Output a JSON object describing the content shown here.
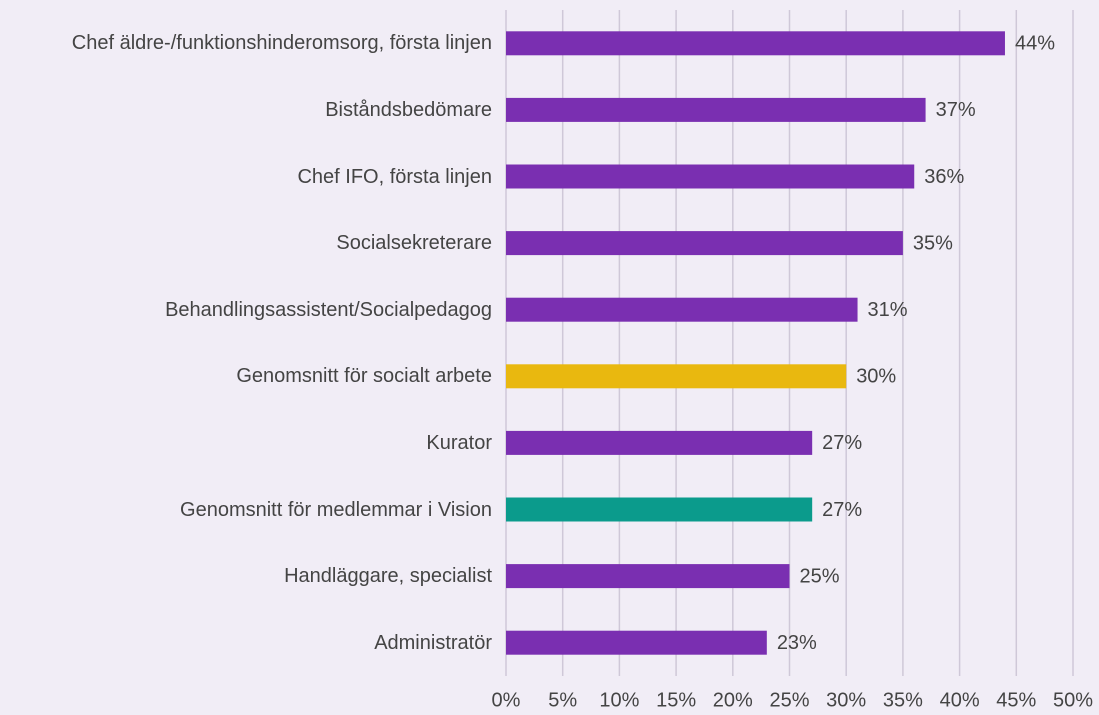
{
  "chart_data": {
    "type": "bar",
    "orientation": "horizontal",
    "categories": [
      "Chef äldre-/funktionshinderomsorg, första linjen",
      "Biståndsbedömare",
      "Chef IFO, första linjen",
      "Socialsekreterare",
      "Behandlingsassistent/Socialpedagog",
      "Genomsnitt för socialt arbete",
      "Kurator",
      "Genomsnitt för medlemmar i Vision",
      "Handläggare, specialist",
      "Administratör"
    ],
    "values": [
      44,
      37,
      36,
      35,
      31,
      30,
      27,
      27,
      25,
      23
    ],
    "value_labels": [
      "44%",
      "37%",
      "36%",
      "35%",
      "31%",
      "30%",
      "27%",
      "27%",
      "25%",
      "23%"
    ],
    "colors": [
      "#7a2fb1",
      "#7a2fb1",
      "#7a2fb1",
      "#7a2fb1",
      "#7a2fb1",
      "#e9b80f",
      "#7a2fb1",
      "#0b9b8c",
      "#7a2fb1",
      "#7a2fb1"
    ],
    "xlim": [
      0,
      50
    ],
    "xticks": [
      {
        "value": 0,
        "label": "0%"
      },
      {
        "value": 5,
        "label": "5%"
      },
      {
        "value": 10,
        "label": "10%"
      },
      {
        "value": 15,
        "label": "15%"
      },
      {
        "value": 20,
        "label": "20%"
      },
      {
        "value": 25,
        "label": "25%"
      },
      {
        "value": 30,
        "label": "30%"
      },
      {
        "value": 35,
        "label": "35%"
      },
      {
        "value": 40,
        "label": "40%"
      },
      {
        "value": 45,
        "label": "45%"
      },
      {
        "value": 50,
        "label": "50%"
      }
    ],
    "grid": true
  }
}
